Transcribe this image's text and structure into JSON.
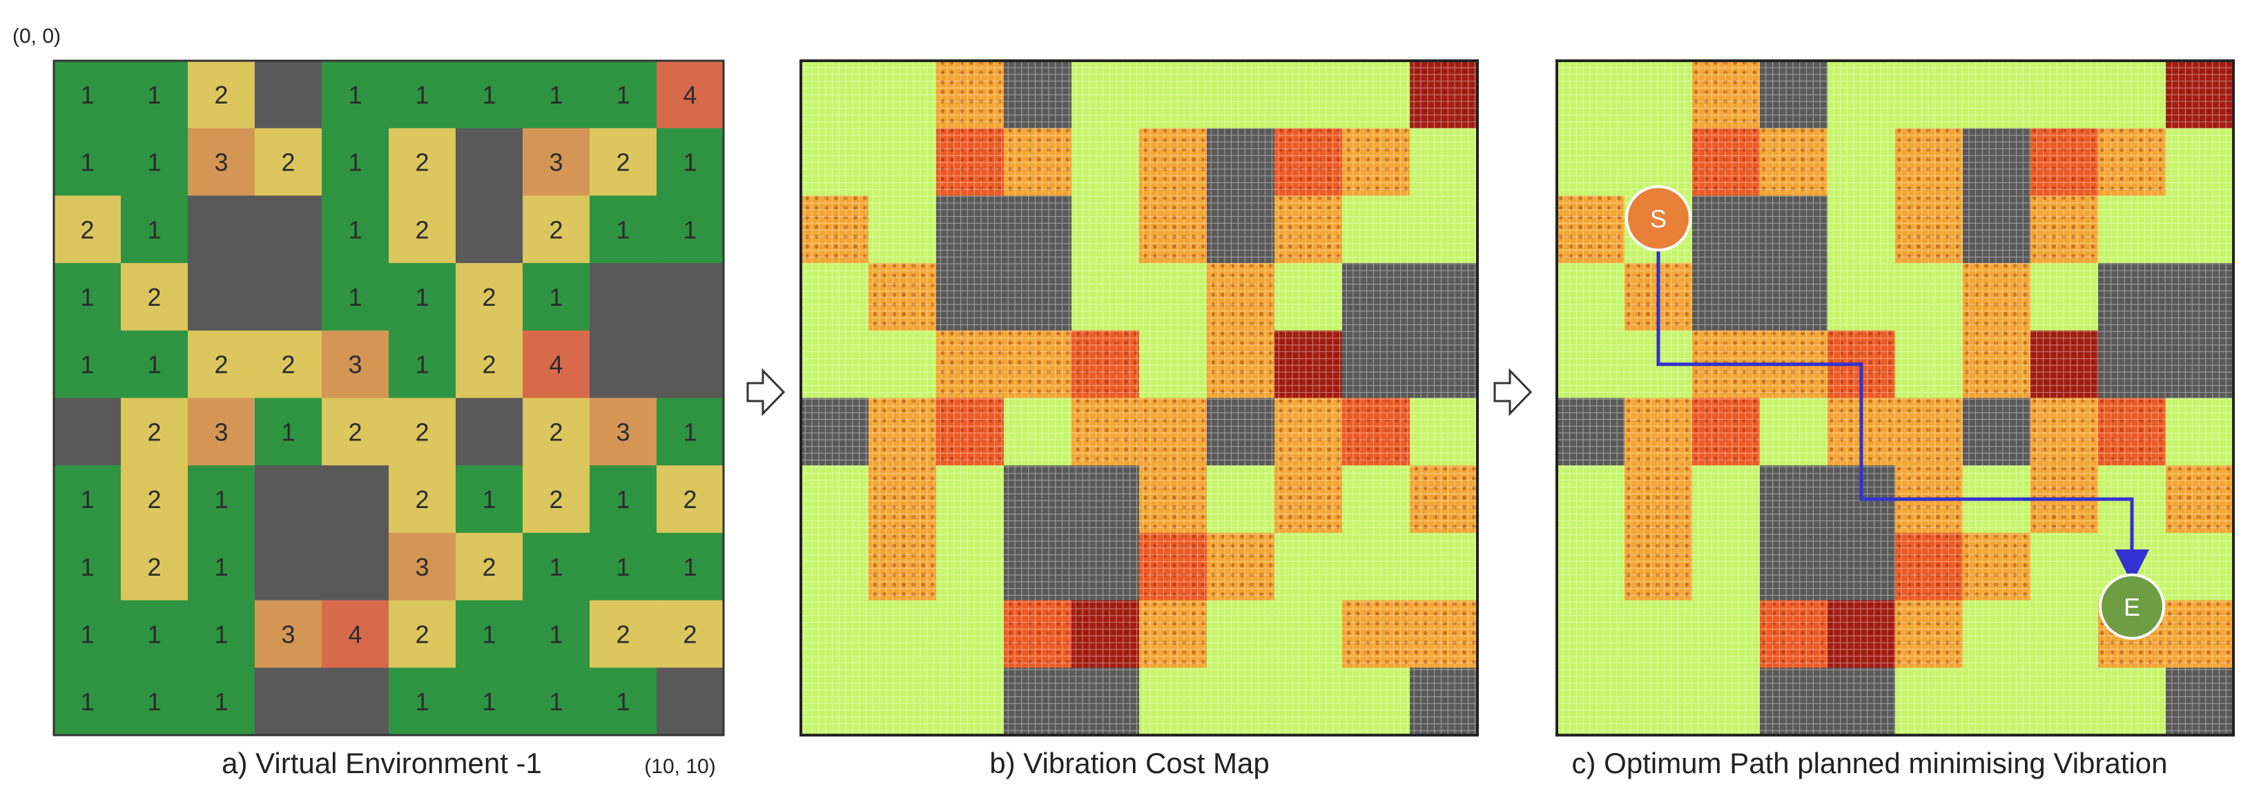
{
  "coords": {
    "origin": "(0, 0)",
    "end": "(10, 10)"
  },
  "panels": {
    "a": {
      "caption": "a) Virtual Environment -1"
    },
    "b": {
      "caption": "b) Vibration Cost Map"
    },
    "c": {
      "caption": "c) Optimum Path planned minimising Vibration"
    }
  },
  "markers": {
    "start": "S",
    "end": "E"
  },
  "colors": {
    "level1": "#2e9441",
    "level2": "#dcc65e",
    "level3": "#d49655",
    "level4": "#d86a4c",
    "obstacle": "#595959",
    "path": "#3232d0",
    "start_marker": "#e8803a",
    "end_marker": "#6f9d44"
  },
  "grid_rows": [
    [
      1,
      1,
      2,
      0,
      1,
      1,
      1,
      1,
      1,
      4
    ],
    [
      1,
      1,
      3,
      2,
      1,
      2,
      0,
      3,
      2,
      1
    ],
    [
      2,
      1,
      0,
      0,
      1,
      2,
      0,
      2,
      1,
      1
    ],
    [
      1,
      2,
      0,
      0,
      1,
      1,
      2,
      1,
      0,
      0
    ],
    [
      1,
      1,
      2,
      2,
      3,
      1,
      2,
      4,
      0,
      0
    ],
    [
      0,
      2,
      3,
      1,
      2,
      2,
      0,
      2,
      3,
      1
    ],
    [
      1,
      2,
      1,
      0,
      0,
      2,
      1,
      2,
      1,
      2
    ],
    [
      1,
      2,
      1,
      0,
      0,
      3,
      2,
      1,
      1,
      1
    ],
    [
      1,
      1,
      1,
      3,
      4,
      2,
      1,
      1,
      2,
      2
    ],
    [
      1,
      1,
      1,
      0,
      0,
      1,
      1,
      1,
      1,
      0
    ]
  ],
  "path_cells": [
    [
      1,
      2
    ],
    [
      1,
      3
    ],
    [
      1,
      4
    ],
    [
      2,
      4
    ],
    [
      3,
      4
    ],
    [
      4,
      4
    ],
    [
      4,
      5
    ],
    [
      4,
      6
    ],
    [
      5,
      6
    ],
    [
      6,
      6
    ],
    [
      7,
      6
    ],
    [
      8,
      6
    ],
    [
      8,
      7
    ]
  ]
}
